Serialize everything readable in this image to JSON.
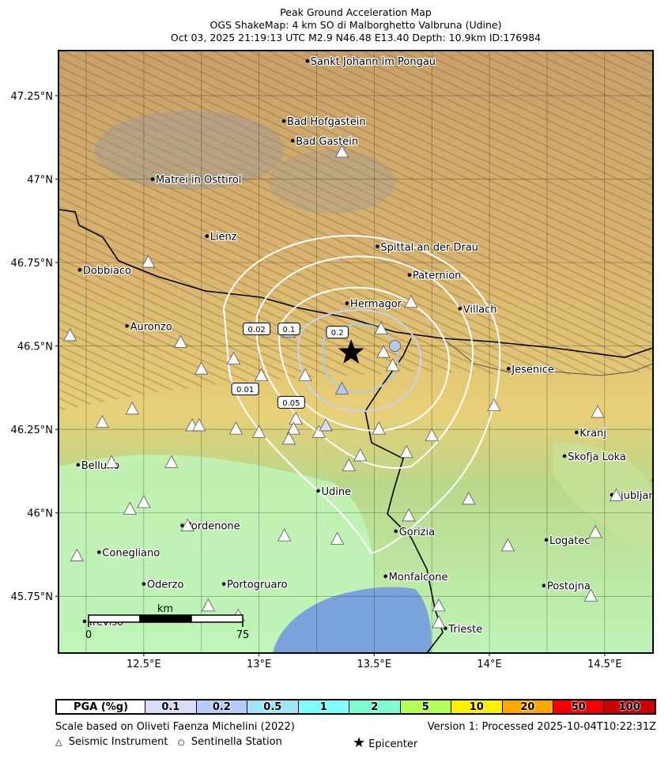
{
  "title": {
    "line1": "Peak Ground Acceleration Map",
    "line2": "OGS ShakeMap: 4 km SO di Malborghetto Valbruna (Udine)",
    "line3": "Oct 03, 2025 21:19:13 UTC M2.9 N46.48 E13.40 Depth: 10.9km ID:176984"
  },
  "map": {
    "lon_range": [
      12.13,
      14.71
    ],
    "lat_range": [
      45.58,
      47.385
    ],
    "lon_ticks": [
      {
        "v": 12.5,
        "label": "12.5°E"
      },
      {
        "v": 13,
        "label": "13°E"
      },
      {
        "v": 13.5,
        "label": "13.5°E"
      },
      {
        "v": 14,
        "label": "14°E"
      },
      {
        "v": 14.5,
        "label": "14.5°E"
      }
    ],
    "lat_ticks": [
      {
        "v": 47.25,
        "label": "47.25°N"
      },
      {
        "v": 47,
        "label": "47°N"
      },
      {
        "v": 46.75,
        "label": "46.75°N"
      },
      {
        "v": 46.5,
        "label": "46.5°N"
      },
      {
        "v": 46.25,
        "label": "46.25°N"
      },
      {
        "v": 46,
        "label": "46°N"
      },
      {
        "v": 45.75,
        "label": "45.75°N"
      }
    ],
    "epicenter": {
      "lon": 13.4,
      "lat": 46.48
    },
    "cities": [
      {
        "name": "Sankt Johann im Pongau",
        "lon": 13.21,
        "lat": 47.354
      },
      {
        "name": "Bad Hofgastein",
        "lon": 13.108,
        "lat": 47.174
      },
      {
        "name": "Bad Gastein",
        "lon": 13.146,
        "lat": 47.115
      },
      {
        "name": "Matrei in Osttirol",
        "lon": 12.538,
        "lat": 47.0
      },
      {
        "name": "Lienz",
        "lon": 12.774,
        "lat": 46.829
      },
      {
        "name": "Spittal an der Drau",
        "lon": 13.514,
        "lat": 46.798
      },
      {
        "name": "Paternion",
        "lon": 13.653,
        "lat": 46.713
      },
      {
        "name": "Dobbiaco",
        "lon": 12.222,
        "lat": 46.728
      },
      {
        "name": "Hermagor",
        "lon": 13.382,
        "lat": 46.628
      },
      {
        "name": "Villach",
        "lon": 13.872,
        "lat": 46.612
      },
      {
        "name": "Auronzo",
        "lon": 12.427,
        "lat": 46.56
      },
      {
        "name": "Jesenice",
        "lon": 14.083,
        "lat": 46.432
      },
      {
        "name": "Kranj",
        "lon": 14.378,
        "lat": 46.241
      },
      {
        "name": "Skofja Loka",
        "lon": 14.326,
        "lat": 46.17
      },
      {
        "name": "Belluno",
        "lon": 12.215,
        "lat": 46.144
      },
      {
        "name": "Ljubljana",
        "lon": 14.531,
        "lat": 46.054
      },
      {
        "name": "Udine",
        "lon": 13.257,
        "lat": 46.066
      },
      {
        "name": "Pordenone",
        "lon": 12.667,
        "lat": 45.962
      },
      {
        "name": "Gorizia",
        "lon": 13.594,
        "lat": 45.945
      },
      {
        "name": "Conegliano",
        "lon": 12.306,
        "lat": 45.882
      },
      {
        "name": "Logatec",
        "lon": 14.247,
        "lat": 45.919
      },
      {
        "name": "Oderzo",
        "lon": 12.5,
        "lat": 45.787
      },
      {
        "name": "Portogruaro",
        "lon": 12.847,
        "lat": 45.787
      },
      {
        "name": "Monfalcone",
        "lon": 13.549,
        "lat": 45.81
      },
      {
        "name": "Postojna",
        "lon": 14.236,
        "lat": 45.782
      },
      {
        "name": "Treviso",
        "lon": 12.243,
        "lat": 45.675
      },
      {
        "name": "Trieste",
        "lon": 13.809,
        "lat": 45.654
      }
    ],
    "stations": [
      [
        13.36,
        47.08,
        "#fff"
      ],
      [
        12.52,
        46.75,
        "#fff"
      ],
      [
        13.66,
        46.63,
        "#fff"
      ],
      [
        12.18,
        46.53,
        "#fff"
      ],
      [
        12.66,
        46.51,
        "#fff"
      ],
      [
        13.13,
        46.54,
        "#b7c8f5"
      ],
      [
        13.53,
        46.55,
        "#fff"
      ],
      [
        13.54,
        46.48,
        "#fff"
      ],
      [
        13.58,
        46.44,
        "#fff"
      ],
      [
        12.75,
        46.43,
        "#fff"
      ],
      [
        12.89,
        46.46,
        "#fff"
      ],
      [
        13.01,
        46.41,
        "#fff"
      ],
      [
        13.2,
        46.41,
        "#fff"
      ],
      [
        13.36,
        46.37,
        "#b7c8f5"
      ],
      [
        12.45,
        46.31,
        "#fff"
      ],
      [
        12.32,
        46.27,
        "#fff"
      ],
      [
        12.71,
        46.26,
        "#fff"
      ],
      [
        12.74,
        46.26,
        "#fff"
      ],
      [
        12.9,
        46.25,
        "#fff"
      ],
      [
        13.0,
        46.24,
        "#fff"
      ],
      [
        13.16,
        46.28,
        "#fff"
      ],
      [
        13.15,
        46.25,
        "#fff"
      ],
      [
        13.13,
        46.22,
        "#fff"
      ],
      [
        13.26,
        46.24,
        "#fff"
      ],
      [
        13.29,
        46.26,
        "#d8dcf8"
      ],
      [
        13.52,
        46.25,
        "#fff"
      ],
      [
        13.75,
        46.23,
        "#fff"
      ],
      [
        13.44,
        46.17,
        "#fff"
      ],
      [
        13.39,
        46.14,
        "#fff"
      ],
      [
        13.64,
        46.18,
        "#fff"
      ],
      [
        14.02,
        46.32,
        "#fff"
      ],
      [
        14.47,
        46.3,
        "#fff"
      ],
      [
        12.36,
        46.15,
        "#fff"
      ],
      [
        12.62,
        46.15,
        "#fff"
      ],
      [
        13.91,
        46.04,
        "#fff"
      ],
      [
        13.65,
        45.99,
        "#fff"
      ],
      [
        12.5,
        46.03,
        "#fff"
      ],
      [
        12.44,
        46.01,
        "#fff"
      ],
      [
        12.69,
        45.96,
        "#fff"
      ],
      [
        13.11,
        45.93,
        "#fff"
      ],
      [
        13.34,
        45.92,
        "#fff"
      ],
      [
        12.21,
        45.87,
        "#fff"
      ],
      [
        14.08,
        45.9,
        "#fff"
      ],
      [
        14.46,
        45.94,
        "#fff"
      ],
      [
        14.55,
        46.05,
        "#fff"
      ],
      [
        14.73,
        46.11,
        "#fff"
      ],
      [
        14.44,
        45.75,
        "#fff"
      ],
      [
        13.78,
        45.72,
        "#fff"
      ],
      [
        13.78,
        45.67,
        "#fff"
      ],
      [
        12.78,
        45.72,
        "#fff"
      ],
      [
        12.91,
        45.69,
        "#fff"
      ]
    ],
    "sentinella": [
      {
        "lon": 13.59,
        "lat": 46.5,
        "color": "#b7c8f5"
      }
    ],
    "contour_labels": [
      {
        "label": "0.02",
        "lon": 12.99,
        "lat": 46.55
      },
      {
        "label": "0.1",
        "lon": 13.13,
        "lat": 46.55
      },
      {
        "label": "0.2",
        "lon": 13.34,
        "lat": 46.54
      },
      {
        "label": "0.01",
        "lon": 12.94,
        "lat": 46.37
      },
      {
        "label": "0.05",
        "lon": 13.14,
        "lat": 46.33
      }
    ],
    "scale_bar": {
      "unit": "km",
      "start": "0",
      "end": "75"
    }
  },
  "legend": {
    "title": "PGA (%g)",
    "bins": [
      {
        "label": "0.1",
        "color": "#d8dcf8"
      },
      {
        "label": "0.2",
        "color": "#b7cdf9"
      },
      {
        "label": "0.5",
        "color": "#a0e6fa"
      },
      {
        "label": "1",
        "color": "#80fffe"
      },
      {
        "label": "2",
        "color": "#7efdd0"
      },
      {
        "label": "5",
        "color": "#b5ff56"
      },
      {
        "label": "10",
        "color": "#ffef00"
      },
      {
        "label": "20",
        "color": "#ffa800"
      },
      {
        "label": "50",
        "color": "#f50000"
      },
      {
        "label": "100",
        "color": "#c80000"
      }
    ],
    "scale_note": "Scale based on Oliveti Faenza Michelini (2022)",
    "version": "Version 1: Processed 2025-10-04T10:22:31Z",
    "seismic_label": "Seismic Instrument",
    "sentinella_label": "Sentinella Station",
    "epicenter_label": "Epicenter"
  }
}
